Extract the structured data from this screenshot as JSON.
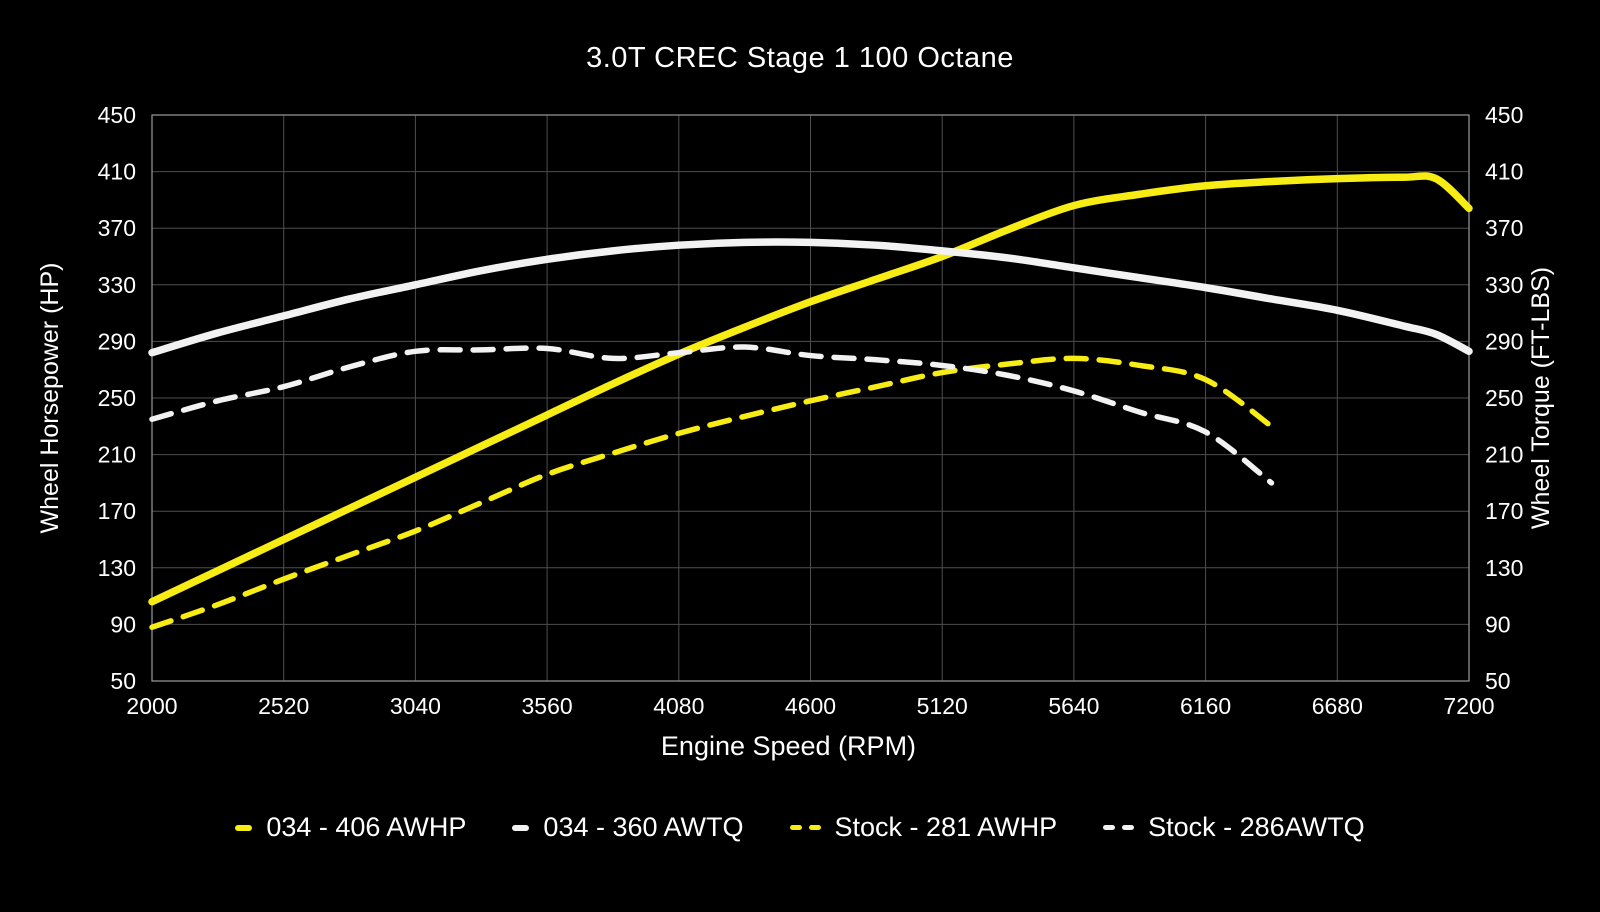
{
  "chart_data": {
    "type": "line",
    "title": "3.0T CREC Stage 1 100 Octane",
    "xlabel": "Engine Speed (RPM)",
    "ylabel_left": "Wheel Horsepower (HP)",
    "ylabel_right": "Wheel Torque (FT-LBS)",
    "xlim": [
      2000,
      7200
    ],
    "ylim": [
      50,
      450
    ],
    "x_ticks": [
      2000,
      2520,
      3040,
      3560,
      4080,
      4600,
      5120,
      5640,
      6160,
      6680,
      7200
    ],
    "y_ticks": [
      50,
      90,
      130,
      170,
      210,
      250,
      290,
      330,
      370,
      410,
      450
    ],
    "grid": true,
    "legend_position": "bottom",
    "colors": {
      "background": "#000000",
      "grid": "#4e4e4e",
      "border": "#909090",
      "text": "#ffffff",
      "yellow": "#f7ec13",
      "white": "#f2f2f2"
    },
    "series": [
      {
        "name": "034 - 406 AWHP",
        "color": "yellow",
        "style": "solid",
        "stroke_width": 7.5,
        "x": [
          2000,
          2260,
          2520,
          2780,
          3040,
          3300,
          3560,
          3820,
          4080,
          4340,
          4600,
          4860,
          5120,
          5380,
          5640,
          5900,
          6160,
          6420,
          6680,
          6940,
          7070,
          7200
        ],
        "values": [
          106,
          128,
          150,
          172,
          194,
          216,
          238,
          260,
          281,
          300,
          318,
          334,
          350,
          369,
          386,
          394,
          400,
          403,
          405,
          406,
          405,
          384
        ]
      },
      {
        "name": "034 - 360 AWTQ",
        "color": "white",
        "style": "solid",
        "stroke_width": 7.5,
        "x": [
          2000,
          2260,
          2520,
          2780,
          3040,
          3300,
          3560,
          3820,
          4080,
          4340,
          4600,
          4860,
          5120,
          5380,
          5640,
          5900,
          6160,
          6420,
          6680,
          6940,
          7070,
          7200
        ],
        "values": [
          282,
          296,
          308,
          320,
          330,
          340,
          348,
          354,
          358,
          360,
          360,
          358,
          354,
          349,
          342,
          335,
          328,
          320,
          312,
          301,
          295,
          283
        ]
      },
      {
        "name": "Stock - 281 AWHP",
        "color": "yellow",
        "style": "dashed",
        "stroke_width": 5.5,
        "x": [
          2000,
          2260,
          2520,
          2780,
          3040,
          3300,
          3560,
          3820,
          4080,
          4340,
          4600,
          4860,
          5120,
          5380,
          5640,
          5900,
          6160,
          6420
        ],
        "values": [
          88,
          104,
          122,
          139,
          156,
          176,
          196,
          211,
          225,
          237,
          248,
          258,
          268,
          274,
          278,
          273,
          263,
          230
        ]
      },
      {
        "name": "Stock - 286AWTQ",
        "color": "white",
        "style": "dashed",
        "stroke_width": 5.5,
        "x": [
          2000,
          2260,
          2520,
          2780,
          3040,
          3300,
          3560,
          3820,
          4080,
          4340,
          4600,
          4860,
          5120,
          5380,
          5640,
          5900,
          6160,
          6420
        ],
        "values": [
          235,
          248,
          258,
          272,
          283,
          284,
          285,
          278,
          282,
          286,
          280,
          277,
          273,
          266,
          255,
          240,
          226,
          190
        ]
      }
    ]
  }
}
